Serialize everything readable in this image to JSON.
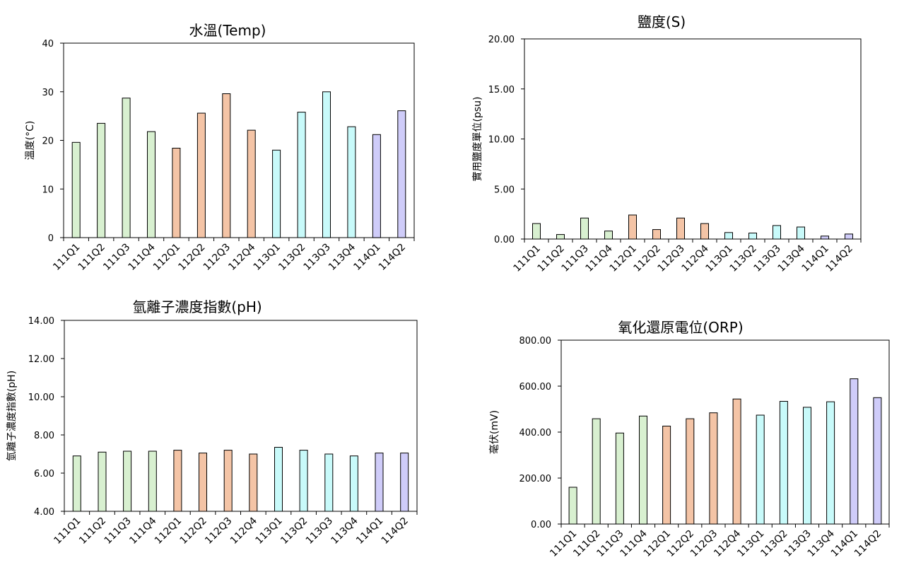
{
  "colors": {
    "2022": "#d8f0d0",
    "2023": "#f4c4a6",
    "2024": "#c8fafa",
    "2025": "#cfccf9",
    "axis": "#000000"
  },
  "chart_data": [
    {
      "type": "bar",
      "title": "水溫(Temp)",
      "ylabel": "溫度(°C)",
      "categories": [
        "111Q1",
        "111Q2",
        "111Q3",
        "111Q4",
        "112Q1",
        "112Q2",
        "112Q3",
        "112Q4",
        "113Q1",
        "113Q2",
        "113Q3",
        "113Q4",
        "114Q1",
        "114Q2"
      ],
      "values": [
        19.6,
        23.5,
        28.7,
        21.8,
        18.4,
        25.6,
        29.6,
        22.1,
        18.0,
        25.8,
        30.0,
        22.8,
        21.2,
        26.1
      ],
      "ylim": [
        0,
        40
      ],
      "yticks": [
        "0",
        "10",
        "20",
        "30",
        "40"
      ],
      "color_groups": [
        "2022",
        "2022",
        "2022",
        "2022",
        "2023",
        "2023",
        "2023",
        "2023",
        "2024",
        "2024",
        "2024",
        "2024",
        "2025",
        "2025"
      ],
      "grid": false
    },
    {
      "type": "bar",
      "title": "鹽度(S)",
      "ylabel": "實用鹽度單位(psu)",
      "categories": [
        "111Q1",
        "111Q2",
        "111Q3",
        "111Q4",
        "112Q1",
        "112Q2",
        "112Q3",
        "112Q4",
        "113Q1",
        "113Q2",
        "113Q3",
        "113Q4",
        "114Q1",
        "114Q2"
      ],
      "values": [
        1.55,
        0.45,
        2.1,
        0.8,
        2.4,
        0.95,
        2.1,
        1.55,
        0.65,
        0.6,
        1.35,
        1.2,
        0.3,
        0.5
      ],
      "ylim": [
        0,
        20
      ],
      "yticks": [
        "0.00",
        "5.00",
        "10.00",
        "15.00",
        "20.00"
      ],
      "color_groups": [
        "2022",
        "2022",
        "2022",
        "2022",
        "2023",
        "2023",
        "2023",
        "2023",
        "2024",
        "2024",
        "2024",
        "2024",
        "2025",
        "2025"
      ],
      "grid": false
    },
    {
      "type": "bar",
      "title": "氫離子濃度指數(pH)",
      "ylabel": "氫離子濃度指數(pH)",
      "categories": [
        "111Q1",
        "111Q2",
        "111Q3",
        "111Q4",
        "112Q1",
        "112Q2",
        "112Q3",
        "112Q4",
        "113Q1",
        "113Q2",
        "113Q3",
        "113Q4",
        "114Q1",
        "114Q2"
      ],
      "values": [
        6.9,
        7.1,
        7.15,
        7.15,
        7.2,
        7.05,
        7.2,
        7.0,
        7.35,
        7.2,
        7.0,
        6.9,
        7.05,
        7.05
      ],
      "ylim": [
        4,
        14
      ],
      "yticks": [
        "4.00",
        "6.00",
        "8.00",
        "10.00",
        "12.00",
        "14.00"
      ],
      "color_groups": [
        "2022",
        "2022",
        "2022",
        "2022",
        "2023",
        "2023",
        "2023",
        "2023",
        "2024",
        "2024",
        "2024",
        "2024",
        "2025",
        "2025"
      ],
      "grid": false
    },
    {
      "type": "bar",
      "title": "氧化還原電位(ORP)",
      "ylabel": "毫伏(mV)",
      "categories": [
        "111Q1",
        "111Q2",
        "111Q3",
        "111Q4",
        "112Q1",
        "112Q2",
        "112Q3",
        "112Q4",
        "113Q1",
        "113Q2",
        "113Q3",
        "113Q4",
        "114Q1",
        "114Q2"
      ],
      "values": [
        160,
        458,
        396,
        470,
        426,
        458,
        484,
        544,
        474,
        534,
        508,
        532,
        632,
        550
      ],
      "ylim": [
        0,
        800
      ],
      "yticks": [
        "0.00",
        "200.00",
        "400.00",
        "600.00",
        "800.00"
      ],
      "color_groups": [
        "2022",
        "2022",
        "2022",
        "2022",
        "2023",
        "2023",
        "2023",
        "2023",
        "2024",
        "2024",
        "2024",
        "2024",
        "2025",
        "2025"
      ],
      "grid": false
    }
  ]
}
